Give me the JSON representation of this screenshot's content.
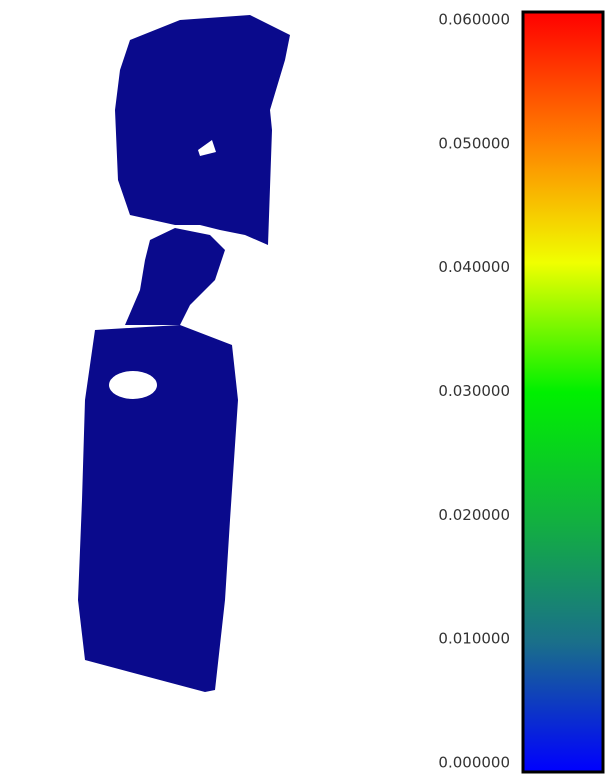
{
  "colorbar": {
    "range": [
      0,
      0.06
    ],
    "ticks": [
      {
        "value": 0.06,
        "label": "0.060000"
      },
      {
        "value": 0.05,
        "label": "0.050000"
      },
      {
        "value": 0.04,
        "label": "0.040000"
      },
      {
        "value": 0.03,
        "label": "0.030000"
      },
      {
        "value": 0.02,
        "label": "0.020000"
      },
      {
        "value": 0.01,
        "label": "0.010000"
      },
      {
        "value": 0,
        "label": "0.000000"
      }
    ]
  }
}
